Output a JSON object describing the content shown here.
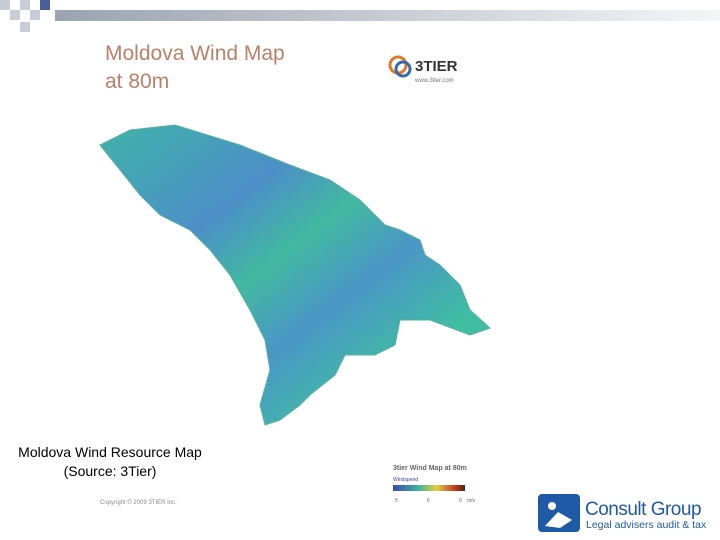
{
  "map": {
    "title_line1": "Moldova Wind Map",
    "title_line2": "at 80m",
    "source_logo": "3TIER",
    "source_url": "www.3tier.com",
    "copyright": "Copyright © 2009 3TIER Inc.",
    "legend": {
      "title": "3tier Wind Map at 80m",
      "label": "Windspeed",
      "ticks": [
        "5",
        "6",
        "9"
      ],
      "unit": "m/s"
    }
  },
  "caption": "Moldova Wind Resource Map (Source: 3Tier)",
  "company": {
    "name": "Consult Group",
    "tagline": "Legal advisers audit & tax"
  }
}
